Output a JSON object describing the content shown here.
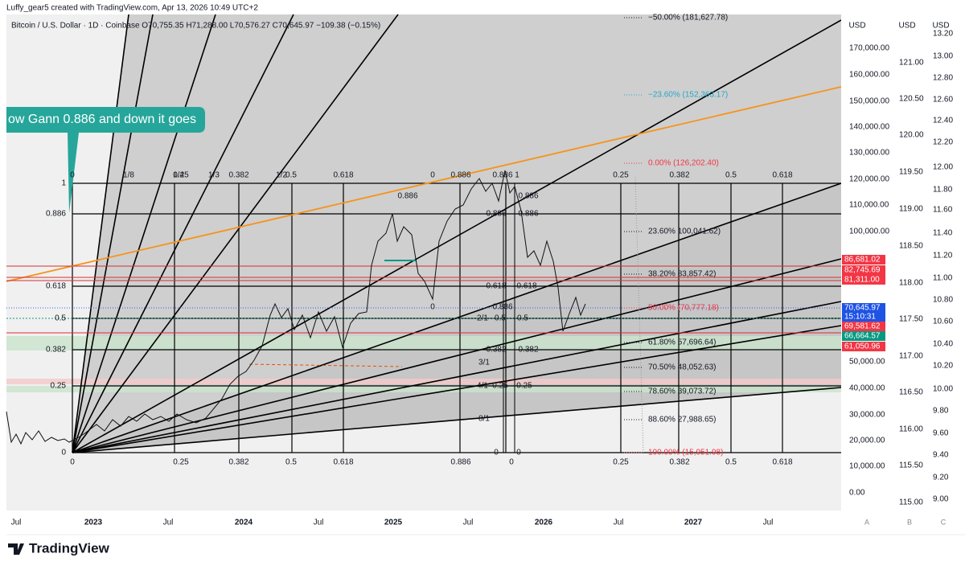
{
  "header": {
    "author_line": "Luffy_gear5 created with TradingView.com, Apr 13, 2026 10:49 UTC+2",
    "symbol_line": "Bitcoin / U.S. Dollar · 1D · Coinbase  O70,755.35  H71,288.00  L70,576.27  C70,645.97  −109.38 (−0.15%)"
  },
  "callout": "ow Gann 0.886 and down it goes",
  "gann": {
    "left_levels": [
      "1",
      "0.886",
      "0.618",
      "0.5",
      "0.382",
      "0.25",
      "0"
    ],
    "top_labels": [
      "0",
      "1/8",
      "0.25",
      "1/4",
      "1/3",
      "0.382",
      "1/2",
      "0.5",
      "0.618",
      "0",
      "0.886",
      "0.886",
      "1",
      "0.25",
      "0.382",
      "0.5",
      "0.618"
    ],
    "bottom_labels": [
      "0",
      "0.25",
      "0.382",
      "0.5",
      "0.618",
      "0.886",
      "0",
      "0.25",
      "0.382",
      "0.5",
      "0.618"
    ],
    "inner_labels": [
      "0.886",
      "0.886",
      "0.886",
      "0.886",
      "0.618",
      "0.618",
      "0",
      "0.886",
      "2/1",
      "0.5",
      "0.5",
      "0.382",
      "0.382",
      "3/1",
      "4/1",
      "0.25",
      "0.25",
      "8/1",
      "0",
      "0"
    ]
  },
  "fib": [
    "−50.00% (181,627.78)",
    "−23.60% (152,363.17)",
    "0.00% (126,202.40)",
    "23.60%  100,041.62)",
    "38.20%  83,857.42)",
    "50.00% (70,777.18)",
    "61.80%  57,696.64)",
    "70.50%  48,052.63)",
    "78.60%  39,073.72)",
    "88.60%  27,988.65)",
    "100.00% (15,951.98)"
  ],
  "axes": {
    "units": [
      "USD",
      "USD",
      "USD"
    ],
    "usd": [
      "170,000.00",
      "160,000.00",
      "150,000.00",
      "140,000.00",
      "130,000.00",
      "120,000.00",
      "110,000.00",
      "100,000.00",
      "50,000.00",
      "40,000.00",
      "30,000.00",
      "20,000.00",
      "10,000.00",
      "0.00"
    ],
    "mid": [
      "121.00",
      "120.50",
      "120.00",
      "119.50",
      "119.00",
      "118.50",
      "118.00",
      "117.50",
      "117.00",
      "116.50",
      "116.00",
      "115.50",
      "115.00"
    ],
    "right": [
      "13.20",
      "13.00",
      "12.80",
      "12.60",
      "12.40",
      "12.20",
      "12.00",
      "11.80",
      "11.60",
      "11.40",
      "11.20",
      "11.00",
      "10.80",
      "10.60",
      "10.40",
      "10.20",
      "10.00",
      "9.80",
      "9.60",
      "9.40",
      "9.20",
      "9.00"
    ],
    "price_tags": [
      "86,681.02",
      "82,745.69",
      "81,311.00",
      "70,645.97",
      "15:10:31",
      "69,581.62",
      "66,664.57",
      "61,050.96"
    ],
    "time": [
      "Jul",
      "2023",
      "Jul",
      "2024",
      "Jul",
      "2025",
      "Jul",
      "2026",
      "Jul",
      "2027",
      "Jul"
    ],
    "scale_buttons": [
      "A",
      "B",
      "C"
    ]
  },
  "footer": {
    "logo": "TradingView"
  }
}
